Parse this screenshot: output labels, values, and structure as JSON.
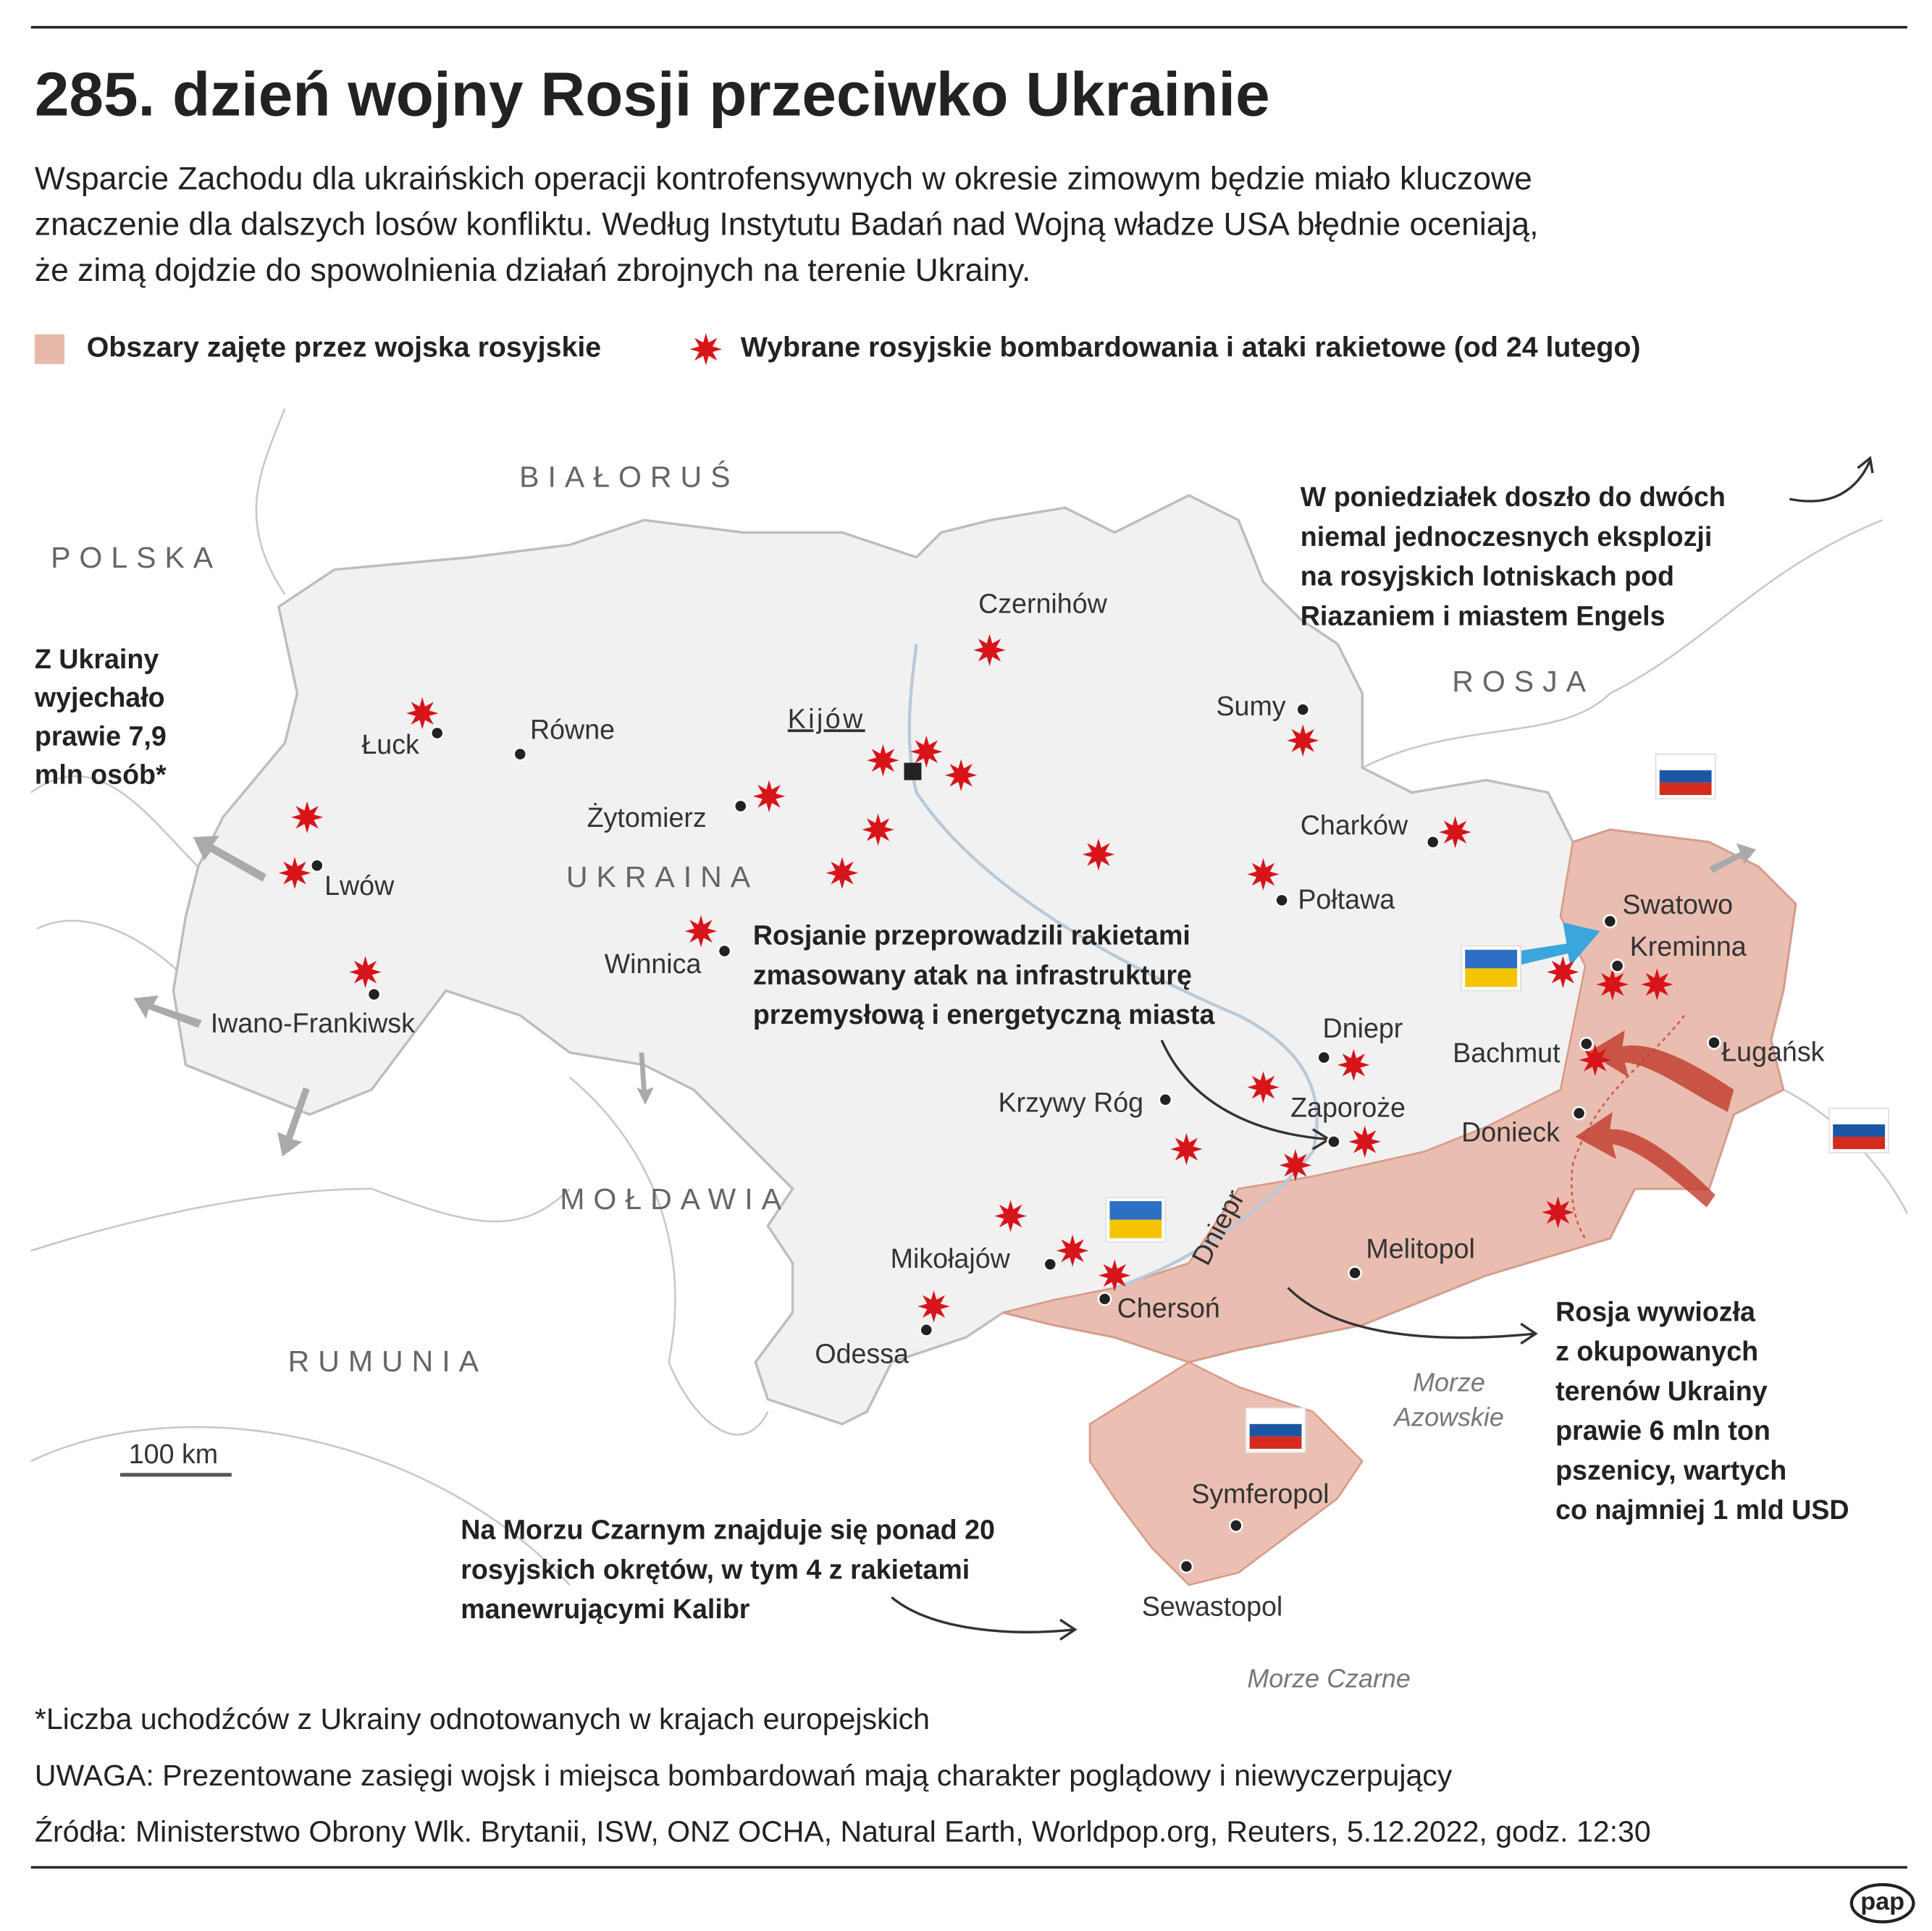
{
  "header": {
    "title": "285. dzień wojny Rosji przeciwko Ukrainie",
    "subtitle": [
      "Wsparcie Zachodu dla ukraińskich operacji kontrofensywnych w okresie zimowym będzie miało kluczowe",
      "znaczenie dla dalszych losów konfliktu. Według Instytutu Badań nad Wojną władze USA błędnie oceniają,",
      "że zimą dojdzie do spowolnienia działań zbrojnych na terenie Ukrainy."
    ]
  },
  "legend": {
    "occupied": "Obszary zajęte przez wojska rosyjskie",
    "strikes": "Wybrane rosyjskie bombardowania i ataki rakietowe (od 24 lutego)"
  },
  "map": {
    "countries": [
      "BIAŁORUŚ",
      "POLSKA",
      "ROSJA",
      "UKRAINA",
      "MOŁDAWIA",
      "RUMUNIA"
    ],
    "cities": [
      "Czernihów",
      "Sumy",
      "Kijów",
      "Łuck",
      "Równe",
      "Żytomierz",
      "Charków",
      "Lwów",
      "Połtawa",
      "Winnica",
      "Swatowo",
      "Kreminna",
      "Dniepr",
      "Iwano-Frankiwsk",
      "Bachmut",
      "Ługańsk",
      "Krzywy Róg",
      "Zaporoże",
      "Donieck",
      "Melitopol",
      "Mikołajów",
      "Chersoń",
      "Odessa",
      "Symferopol",
      "Sewastopol"
    ],
    "river": "Dniepr",
    "seas": {
      "azov": [
        "Morze",
        "Azowskie"
      ],
      "black": "Morze Czarne"
    },
    "scale": "100 km"
  },
  "annotations": {
    "refugees": [
      "Z Ukrainy",
      "wyjechało",
      "prawie 7,9",
      "mln osób*"
    ],
    "explosions": [
      "W poniedziałek doszło do dwóch",
      "niemal jednoczesnych eksplozji",
      "na rosyjskich lotniskach pod",
      "Riazaniem i miastem Engels"
    ],
    "attack": [
      "Rosjanie przeprowadzili rakietami",
      "zmasowany atak na infrastrukturę",
      "przemysłową i energetyczną miasta"
    ],
    "wheat": [
      "Rosja wywiozła",
      "z okupowanych",
      "terenów Ukrainy",
      "prawie 6 mln ton",
      "pszenicy, wartych",
      "co najmniej 1 mld USD"
    ],
    "fleet": [
      "Na Morzu Czarnym znajduje się ponad 20",
      "rosyjskich okrętów, w tym 4 z rakietami",
      "manewrującymi Kalibr"
    ]
  },
  "footer": [
    "*Liczba uchodźców z Ukrainy odnotowanych w krajach europejskich",
    "UWAGA: Prezentowane zasięgi wojsk i miejsca bombardowań mają charakter poglądowy i niewyczerpujący",
    "Źródła: Ministerstwo Obrony Wlk. Brytanii, ISW, ONZ OCHA, Natural Earth, Worldpop.org, Reuters, 5.12.2022, godz. 12:30"
  ],
  "logo": "pap"
}
